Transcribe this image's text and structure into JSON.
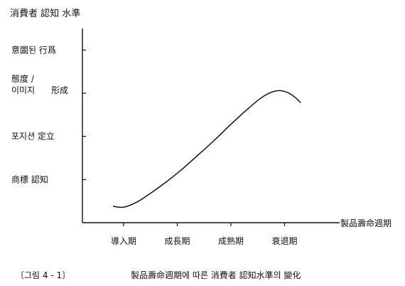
{
  "chart_data": {
    "type": "line",
    "ylabel": "消費者  認知 水準",
    "xlabel": "製品壽命週期",
    "categories": [
      "導入期",
      "成長期",
      "成熟期",
      "衰退期"
    ],
    "x_range": [
      0,
      4
    ],
    "y_levels": [
      {
        "label": "商標  認知",
        "level": 1
      },
      {
        "label": "포지션  定立",
        "level": 2
      },
      {
        "label": "形成",
        "label_lines": [
          "態度 /",
          "이미지"
        ],
        "level": 3
      },
      {
        "label": "意圖된  行爲",
        "level": 4
      }
    ],
    "y_range": [
      0,
      4.5
    ],
    "grid": false,
    "series": [
      {
        "points": [
          [
            0.3,
            0.38
          ],
          [
            0.5,
            0.36
          ],
          [
            0.75,
            0.48
          ],
          [
            1.0,
            0.68
          ],
          [
            1.3,
            0.95
          ],
          [
            1.6,
            1.25
          ],
          [
            1.9,
            1.58
          ],
          [
            2.2,
            1.92
          ],
          [
            2.5,
            2.28
          ],
          [
            2.8,
            2.62
          ],
          [
            3.05,
            2.88
          ],
          [
            3.25,
            3.02
          ],
          [
            3.4,
            3.06
          ],
          [
            3.55,
            3.02
          ],
          [
            3.7,
            2.9
          ],
          [
            3.8,
            2.78
          ]
        ]
      }
    ]
  },
  "caption": {
    "tag": "〔그림 4 - 1〕",
    "text": "製品壽命週期에  따른  消費者  認知水準의  變化"
  }
}
